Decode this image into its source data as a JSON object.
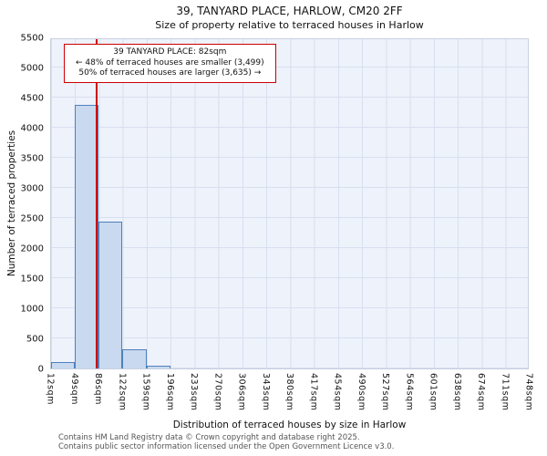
{
  "chart_data": {
    "type": "bar",
    "title": "39, TANYARD PLACE, HARLOW, CM20 2FF",
    "subtitle": "Size of property relative to terraced houses in Harlow",
    "xlabel": "Distribution of terraced houses by size in Harlow",
    "ylabel": "Number of terraced properties",
    "bin_edges_sqm": [
      12,
      49,
      86,
      122,
      159,
      196,
      233,
      270,
      306,
      343,
      380,
      417,
      454,
      490,
      527,
      564,
      601,
      638,
      674,
      711,
      748
    ],
    "x_tick_labels": [
      "12sqm",
      "49sqm",
      "86sqm",
      "122sqm",
      "159sqm",
      "196sqm",
      "233sqm",
      "270sqm",
      "306sqm",
      "343sqm",
      "380sqm",
      "417sqm",
      "454sqm",
      "490sqm",
      "527sqm",
      "564sqm",
      "601sqm",
      "638sqm",
      "674sqm",
      "711sqm",
      "748sqm"
    ],
    "values": [
      100,
      4400,
      2450,
      320,
      40,
      0,
      0,
      0,
      0,
      0,
      0,
      0,
      0,
      0,
      0,
      0,
      0,
      0,
      0,
      0
    ],
    "ylim": [
      0,
      5500
    ],
    "y_ticks": [
      0,
      500,
      1000,
      1500,
      2000,
      2500,
      3000,
      3500,
      4000,
      4500,
      5000,
      5500
    ],
    "grid": true,
    "legend": null,
    "marker_value_sqm": 82,
    "annotation": {
      "line1": "39 TANYARD PLACE: 82sqm",
      "line2": "← 48% of terraced houses are smaller (3,499)",
      "line3": "50% of terraced houses are larger (3,635) →"
    },
    "colors": {
      "bar_fill": "#c9d9ef",
      "bar_edge": "#4f81bd",
      "plot_bg": "#eef2fa",
      "grid": "#d7dff0",
      "marker": "#cc0000",
      "frame": "#c8d0e0",
      "footer_text": "#555555"
    }
  },
  "footer": {
    "line1": "Contains HM Land Registry data © Crown copyright and database right 2025.",
    "line2": "Contains public sector information licensed under the Open Government Licence v3.0."
  }
}
